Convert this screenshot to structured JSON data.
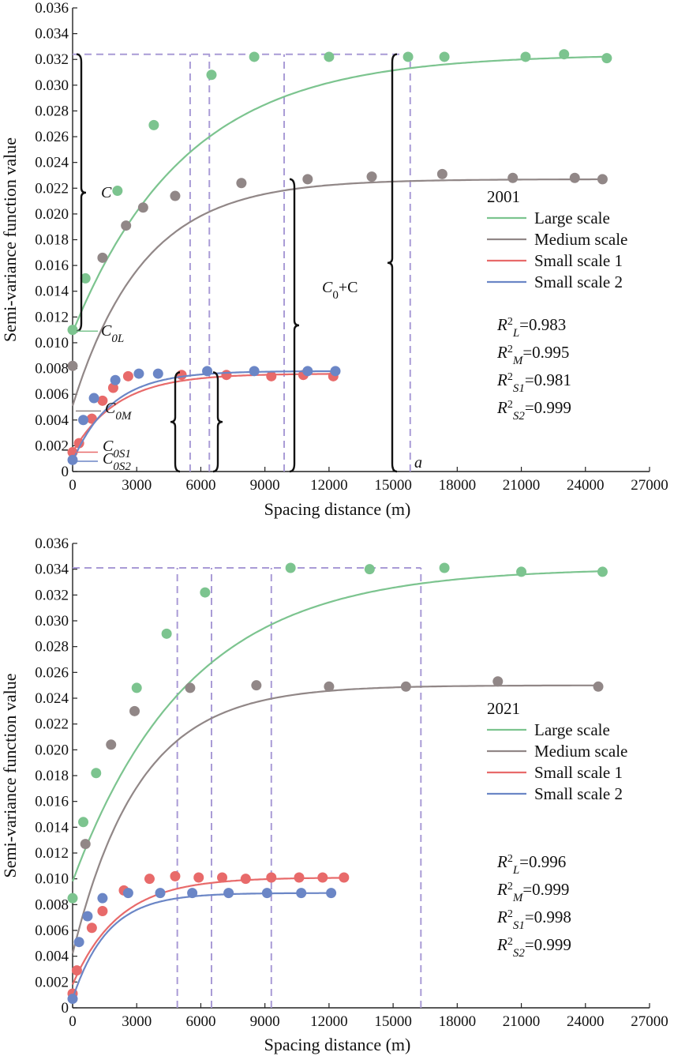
{
  "colors": {
    "large": "#7cc48f",
    "medium": "#918787",
    "small1": "#e86a6a",
    "small2": "#6b86c6",
    "guide": "#a99bd6"
  },
  "chart_data": [
    {
      "type": "scatter",
      "year_label": "2001",
      "xlabel": "Spacing distance (m)",
      "ylabel": "Semi-variance function value",
      "xlim": [
        0,
        27000
      ],
      "ylim": [
        0,
        0.036
      ],
      "xticks": [
        "0",
        "3000",
        "6000",
        "9000",
        "12000",
        "15000",
        "18000",
        "21000",
        "24000",
        "27000"
      ],
      "yticks": [
        "0",
        "0.002",
        "0.004",
        "0.006",
        "0.008",
        "0.010",
        "0.012",
        "0.014",
        "0.016",
        "0.018",
        "0.020",
        "0.022",
        "0.024",
        "0.026",
        "0.028",
        "0.030",
        "0.032",
        "0.034",
        "0.036"
      ],
      "series": [
        {
          "key": "large",
          "name": "Large scale",
          "nugget": 0.0108,
          "sill": 0.0324,
          "range": 15800,
          "points": [
            [
              0,
              0.011
            ],
            [
              600,
              0.015
            ],
            [
              2100,
              0.0218
            ],
            [
              3800,
              0.0269
            ],
            [
              6500,
              0.0308
            ],
            [
              8500,
              0.0322
            ],
            [
              12000,
              0.0322
            ],
            [
              15700,
              0.0322
            ],
            [
              17400,
              0.0322
            ],
            [
              21200,
              0.0322
            ],
            [
              23000,
              0.0324
            ],
            [
              25000,
              0.0321
            ]
          ]
        },
        {
          "key": "medium",
          "name": "Medium scale",
          "nugget": 0.0051,
          "sill": 0.0227,
          "range": 9900,
          "points": [
            [
              0,
              0.0082
            ],
            [
              1400,
              0.0166
            ],
            [
              2500,
              0.0191
            ],
            [
              3300,
              0.0205
            ],
            [
              4800,
              0.0214
            ],
            [
              7900,
              0.0224
            ],
            [
              11000,
              0.0227
            ],
            [
              14000,
              0.0229
            ],
            [
              17300,
              0.0231
            ],
            [
              20600,
              0.0228
            ],
            [
              23500,
              0.0228
            ],
            [
              24800,
              0.0227
            ]
          ]
        },
        {
          "key": "small1",
          "name": "Small scale 1",
          "nugget": 0.0015,
          "sill": 0.0076,
          "range": 6400,
          "points": [
            [
              0,
              0.0015
            ],
            [
              300,
              0.0022
            ],
            [
              900,
              0.0041
            ],
            [
              1400,
              0.0055
            ],
            [
              1900,
              0.0065
            ],
            [
              2600,
              0.0074
            ],
            [
              5100,
              0.0075
            ],
            [
              7200,
              0.0075
            ],
            [
              9300,
              0.0074
            ],
            [
              10800,
              0.0075
            ],
            [
              12200,
              0.0074
            ]
          ]
        },
        {
          "key": "small2",
          "name": "Small scale 2",
          "nugget": 0.0008,
          "sill": 0.0078,
          "range": 5500,
          "points": [
            [
              0,
              0.0009
            ],
            [
              500,
              0.004
            ],
            [
              1000,
              0.0057
            ],
            [
              2000,
              0.0071
            ],
            [
              3100,
              0.0076
            ],
            [
              4000,
              0.0076
            ],
            [
              6300,
              0.0078
            ],
            [
              8500,
              0.0078
            ],
            [
              11000,
              0.0078
            ],
            [
              12300,
              0.0078
            ]
          ]
        }
      ],
      "sill_guide": 0.0324,
      "range_guides": [
        15800,
        9900,
        6400,
        5500
      ],
      "stats": [
        "=0.983",
        "=0.995",
        "=0.981",
        "=0.999"
      ],
      "annotations": {
        "c": "C",
        "c0l": "C",
        "c0l_sub": "0L",
        "c0m": "C",
        "c0m_sub": "0M",
        "c0s1": "C",
        "c0s1_sub": "0S1",
        "c0s2": "C",
        "c0s2_sub": "0S2",
        "c0c_a": "C",
        "c0c_sub": "0",
        "c0c_b": "+C",
        "a": "a"
      }
    },
    {
      "type": "scatter",
      "year_label": "2021",
      "xlabel": "Spacing distance (m)",
      "ylabel": "Semi-variance function value",
      "xlim": [
        0,
        27000
      ],
      "ylim": [
        0,
        0.036
      ],
      "xticks": [
        "0",
        "3000",
        "6000",
        "9000",
        "12000",
        "15000",
        "18000",
        "21000",
        "24000",
        "27000"
      ],
      "yticks": [
        "0",
        "0.002",
        "0.004",
        "0.006",
        "0.008",
        "0.010",
        "0.012",
        "0.014",
        "0.016",
        "0.018",
        "0.020",
        "0.022",
        "0.024",
        "0.026",
        "0.028",
        "0.030",
        "0.032",
        "0.034",
        "0.036"
      ],
      "series": [
        {
          "key": "large",
          "name": "Large scale",
          "nugget": 0.0098,
          "sill": 0.0341,
          "range": 16300,
          "points": [
            [
              0,
              0.0085
            ],
            [
              500,
              0.0144
            ],
            [
              1100,
              0.0182
            ],
            [
              3000,
              0.0248
            ],
            [
              4400,
              0.029
            ],
            [
              6200,
              0.0322
            ],
            [
              10200,
              0.0341
            ],
            [
              13900,
              0.034
            ],
            [
              17400,
              0.0341
            ],
            [
              21000,
              0.0338
            ],
            [
              24800,
              0.0338
            ]
          ]
        },
        {
          "key": "medium",
          "name": "Medium scale",
          "nugget": 0.0042,
          "sill": 0.025,
          "range": 9300,
          "points": [
            [
              600,
              0.0127
            ],
            [
              1800,
              0.0204
            ],
            [
              2900,
              0.023
            ],
            [
              5500,
              0.0248
            ],
            [
              8600,
              0.025
            ],
            [
              12000,
              0.0249
            ],
            [
              15600,
              0.0249
            ],
            [
              19900,
              0.0253
            ],
            [
              24600,
              0.0249
            ]
          ]
        },
        {
          "key": "small1",
          "name": "Small scale 1",
          "nugget": 0.0018,
          "sill": 0.0101,
          "range": 6500,
          "points": [
            [
              0,
              0.0011
            ],
            [
              200,
              0.0029
            ],
            [
              900,
              0.0062
            ],
            [
              1400,
              0.0075
            ],
            [
              2400,
              0.0091
            ],
            [
              3600,
              0.01
            ],
            [
              4800,
              0.0102
            ],
            [
              5900,
              0.0101
            ],
            [
              7000,
              0.0101
            ],
            [
              8100,
              0.01
            ],
            [
              9300,
              0.0101
            ],
            [
              10600,
              0.0101
            ],
            [
              11700,
              0.0101
            ],
            [
              12700,
              0.0101
            ]
          ]
        },
        {
          "key": "small2",
          "name": "Small scale 2",
          "nugget": 0.0007,
          "sill": 0.0089,
          "range": 4900,
          "points": [
            [
              0,
              0.0007
            ],
            [
              300,
              0.0051
            ],
            [
              700,
              0.0071
            ],
            [
              1400,
              0.0085
            ],
            [
              2600,
              0.0089
            ],
            [
              4100,
              0.0089
            ],
            [
              5600,
              0.0089
            ],
            [
              7300,
              0.0089
            ],
            [
              9100,
              0.0089
            ],
            [
              10700,
              0.0089
            ],
            [
              12100,
              0.0089
            ]
          ]
        }
      ],
      "sill_guide": 0.0341,
      "range_guides": [
        16300,
        9300,
        6500,
        4900
      ],
      "stats": [
        "=0.996",
        "=0.999",
        "=0.998",
        "=0.999"
      ]
    }
  ]
}
